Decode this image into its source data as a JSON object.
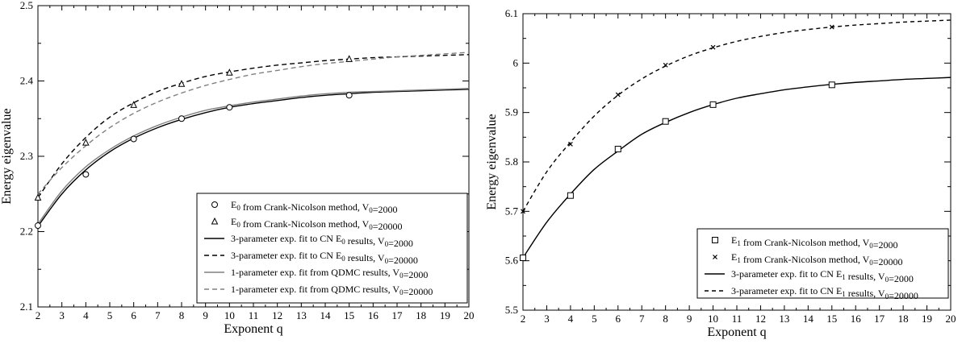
{
  "chart_data": [
    {
      "type": "line",
      "xlabel": "Exponent q",
      "ylabel": "Energy eigenvalue",
      "xlim": [
        2,
        20
      ],
      "ylim": [
        2.1,
        2.5
      ],
      "xticks": [
        2,
        3,
        4,
        5,
        6,
        7,
        8,
        9,
        10,
        11,
        12,
        13,
        14,
        15,
        16,
        17,
        18,
        19,
        20
      ],
      "yticks": [
        2.1,
        2.2,
        2.3,
        2.4,
        2.5
      ],
      "legend_position": "lower-right",
      "series": [
        {
          "name": "E0_cn_2000",
          "label_main": "E",
          "label_sub": "0",
          "label_rest": " from Crank-Nicolson method, V",
          "label_vsub": "0",
          "label_end": "=2000",
          "kind": "markers",
          "marker": "circle",
          "color": "#000000",
          "x": [
            2,
            4,
            6,
            8,
            10,
            15
          ],
          "y": [
            2.208,
            2.276,
            2.323,
            2.35,
            2.365,
            2.381
          ]
        },
        {
          "name": "E0_cn_20000",
          "label_main": "E",
          "label_sub": "0",
          "label_rest": " from Crank-Nicolson method, V",
          "label_vsub": "0",
          "label_end": "=20000",
          "kind": "markers",
          "marker": "triangle",
          "color": "#000000",
          "x": [
            2,
            4,
            6,
            8,
            10,
            15
          ],
          "y": [
            2.245,
            2.318,
            2.368,
            2.396,
            2.411,
            2.429
          ]
        },
        {
          "name": "fit3_2000",
          "label_main": "3-parameter exp. fit to CN E",
          "label_sub": "0",
          "label_rest": " results, V",
          "label_vsub": "0",
          "label_end": "=2000",
          "kind": "line",
          "dash": "",
          "color": "#000000",
          "x": [
            2,
            3,
            4,
            5,
            6,
            7,
            8,
            9,
            10,
            11,
            12,
            13,
            14,
            15,
            16,
            17,
            18,
            19,
            20
          ],
          "y": [
            2.207,
            2.25,
            2.282,
            2.306,
            2.324,
            2.338,
            2.349,
            2.358,
            2.365,
            2.37,
            2.374,
            2.378,
            2.381,
            2.383,
            2.385,
            2.386,
            2.387,
            2.388,
            2.389
          ]
        },
        {
          "name": "fit3_20000",
          "label_main": "3-parameter exp. fit to CN E",
          "label_sub": "0",
          "label_rest": " results, V",
          "label_vsub": "0",
          "label_end": "=20000",
          "kind": "line",
          "dash": "6,4",
          "color": "#000000",
          "x": [
            2,
            3,
            4,
            5,
            6,
            7,
            8,
            9,
            10,
            11,
            12,
            13,
            14,
            15,
            16,
            17,
            18,
            19,
            20
          ],
          "y": [
            2.245,
            2.29,
            2.325,
            2.352,
            2.371,
            2.386,
            2.397,
            2.406,
            2.412,
            2.417,
            2.421,
            2.424,
            2.427,
            2.429,
            2.431,
            2.432,
            2.433,
            2.434,
            2.435
          ]
        },
        {
          "name": "fit1_2000",
          "label_main": "1-parameter exp. fit from QDMC results, V",
          "label_sub": "0",
          "label_rest": "=2000",
          "label_vsub": "",
          "label_end": "",
          "kind": "line",
          "dash": "",
          "color": "#808080",
          "x": [
            2,
            3,
            4,
            5,
            6,
            7,
            8,
            9,
            10,
            11,
            12,
            13,
            14,
            15,
            16,
            17,
            18,
            19,
            20
          ],
          "y": [
            2.21,
            2.254,
            2.286,
            2.309,
            2.327,
            2.341,
            2.352,
            2.361,
            2.367,
            2.372,
            2.376,
            2.38,
            2.383,
            2.385,
            2.386,
            2.387,
            2.388,
            2.389,
            2.39
          ]
        },
        {
          "name": "fit1_20000",
          "label_main": "1-parameter exp. fit from QDMC results, V",
          "label_sub": "0",
          "label_rest": "=20000",
          "label_vsub": "",
          "label_end": "",
          "kind": "line",
          "dash": "6,4",
          "color": "#808080",
          "x": [
            2,
            3,
            4,
            5,
            6,
            7,
            8,
            9,
            10,
            11,
            12,
            13,
            14,
            15,
            16,
            17,
            18,
            19,
            20
          ],
          "y": [
            2.25,
            2.285,
            2.314,
            2.338,
            2.357,
            2.372,
            2.384,
            2.394,
            2.402,
            2.409,
            2.414,
            2.419,
            2.423,
            2.426,
            2.429,
            2.432,
            2.434,
            2.436,
            2.438
          ]
        }
      ]
    },
    {
      "type": "line",
      "xlabel": "Exponent q",
      "ylabel": "Energy eigenvalue",
      "xlim": [
        2,
        20
      ],
      "ylim": [
        5.5,
        6.1
      ],
      "xticks": [
        2,
        3,
        4,
        5,
        6,
        7,
        8,
        9,
        10,
        11,
        12,
        13,
        14,
        15,
        16,
        17,
        18,
        19,
        20
      ],
      "yticks": [
        5.5,
        5.6,
        5.7,
        5.8,
        5.9,
        6,
        6.1
      ],
      "legend_position": "lower-right",
      "series": [
        {
          "name": "E1_cn_2000",
          "label_main": "E",
          "label_sub": "1",
          "label_rest": " from Crank-Nicolson method, V",
          "label_vsub": "0",
          "label_end": "=2000",
          "kind": "markers",
          "marker": "square",
          "color": "#000000",
          "x": [
            2,
            4,
            6,
            8,
            10,
            15
          ],
          "y": [
            5.606,
            5.732,
            5.826,
            5.882,
            5.916,
            5.956
          ]
        },
        {
          "name": "E1_cn_20000",
          "label_main": "E",
          "label_sub": "1",
          "label_rest": " from Crank-Nicolson method, V",
          "label_vsub": "0",
          "label_end": "=20000",
          "kind": "markers",
          "marker": "cross",
          "color": "#000000",
          "x": [
            2,
            4,
            6,
            8,
            10,
            15
          ],
          "y": [
            5.7,
            5.836,
            5.936,
            5.996,
            6.032,
            6.073
          ]
        },
        {
          "name": "fit3_E1_2000",
          "label_main": "3-parameter exp. fit to CN E",
          "label_sub": "1",
          "label_rest": " results, V",
          "label_vsub": "0",
          "label_end": "=2000",
          "kind": "line",
          "dash": "",
          "color": "#000000",
          "x": [
            2,
            3,
            4,
            5,
            6,
            7,
            8,
            9,
            10,
            11,
            12,
            13,
            14,
            15,
            16,
            17,
            18,
            19,
            20
          ],
          "y": [
            5.606,
            5.678,
            5.735,
            5.785,
            5.822,
            5.856,
            5.88,
            5.9,
            5.916,
            5.929,
            5.938,
            5.946,
            5.952,
            5.957,
            5.961,
            5.964,
            5.967,
            5.969,
            5.971
          ]
        },
        {
          "name": "fit3_E1_20000",
          "label_main": "3-parameter exp. fit to CN E",
          "label_sub": "1",
          "label_rest": " results, V",
          "label_vsub": "0",
          "label_end": "=20000",
          "kind": "line",
          "dash": "5,4",
          "color": "#000000",
          "x": [
            2,
            3,
            4,
            5,
            6,
            7,
            8,
            9,
            10,
            11,
            12,
            13,
            14,
            15,
            16,
            17,
            18,
            19,
            20
          ],
          "y": [
            5.7,
            5.78,
            5.84,
            5.893,
            5.935,
            5.968,
            5.994,
            6.015,
            6.031,
            6.044,
            6.054,
            6.062,
            6.068,
            6.073,
            6.077,
            6.08,
            6.083,
            6.085,
            6.087
          ]
        }
      ]
    }
  ]
}
